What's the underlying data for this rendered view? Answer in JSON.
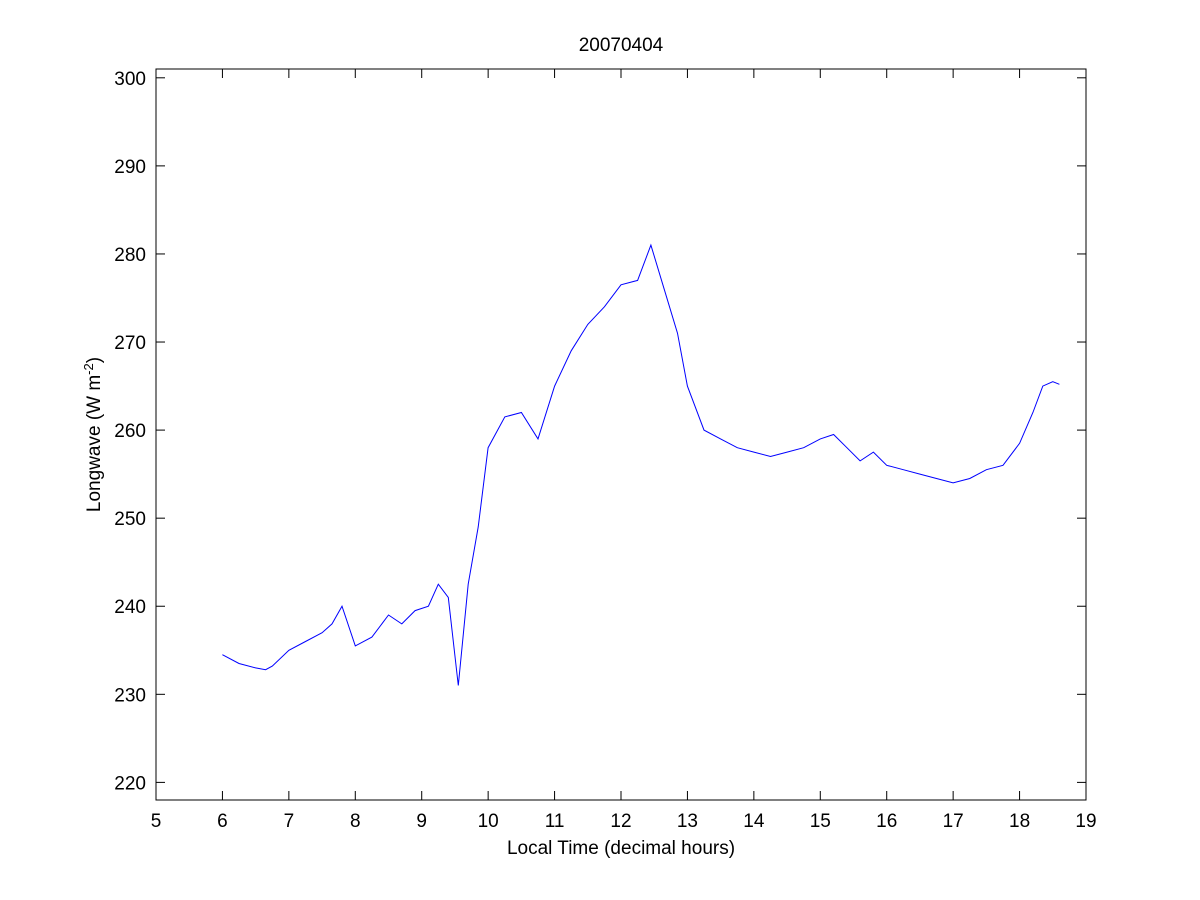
{
  "chart_data": {
    "type": "line",
    "title": "20070404",
    "xlabel": "Local Time (decimal hours)",
    "ylabel": "Longwave (W m",
    "ylabel_superscript": "-2",
    "ylabel_close": ")",
    "xlim": [
      5,
      19
    ],
    "ylim": [
      218,
      301
    ],
    "xticks": [
      5,
      6,
      7,
      8,
      9,
      10,
      11,
      12,
      13,
      14,
      15,
      16,
      17,
      18,
      19
    ],
    "yticks": [
      220,
      230,
      240,
      250,
      260,
      270,
      280,
      290,
      300
    ],
    "xtick_labels": [
      "5",
      "6",
      "7",
      "8",
      "9",
      "10",
      "11",
      "12",
      "13",
      "14",
      "15",
      "16",
      "17",
      "18",
      "19"
    ],
    "ytick_labels": [
      "220",
      "230",
      "240",
      "250",
      "260",
      "270",
      "280",
      "290",
      "300"
    ],
    "grid": false,
    "line_color": "#0000ff",
    "series": [
      {
        "x": [
          6.0,
          6.25,
          6.5,
          6.65,
          6.75,
          7.0,
          7.25,
          7.5,
          7.65,
          7.8,
          8.0,
          8.25,
          8.5,
          8.7,
          8.9,
          9.1,
          9.25,
          9.4,
          9.55,
          9.7,
          9.85,
          10.0,
          10.25,
          10.5,
          10.75,
          11.0,
          11.25,
          11.5,
          11.75,
          12.0,
          12.25,
          12.45,
          12.65,
          12.85,
          13.0,
          13.25,
          13.5,
          13.75,
          14.0,
          14.25,
          14.5,
          14.75,
          15.0,
          15.2,
          15.4,
          15.6,
          15.8,
          16.0,
          16.25,
          16.5,
          16.75,
          17.0,
          17.25,
          17.5,
          17.75,
          18.0,
          18.2,
          18.35,
          18.5,
          18.6
        ],
        "y": [
          234.5,
          233.5,
          233.0,
          232.8,
          233.2,
          235.0,
          236.0,
          237.0,
          238.0,
          240.0,
          235.5,
          236.5,
          239.0,
          238.0,
          239.5,
          240.0,
          242.5,
          241.0,
          231.0,
          242.5,
          249.0,
          258.0,
          261.5,
          262.0,
          259.0,
          265.0,
          269.0,
          272.0,
          274.0,
          276.5,
          277.0,
          281.0,
          276.0,
          271.0,
          265.0,
          260.0,
          259.0,
          258.0,
          257.5,
          257.0,
          257.5,
          258.0,
          259.0,
          259.5,
          258.0,
          256.5,
          257.5,
          256.0,
          255.5,
          255.0,
          254.5,
          254.0,
          254.5,
          255.5,
          256.0,
          258.5,
          262.0,
          265.0,
          265.5,
          265.2
        ]
      }
    ]
  }
}
